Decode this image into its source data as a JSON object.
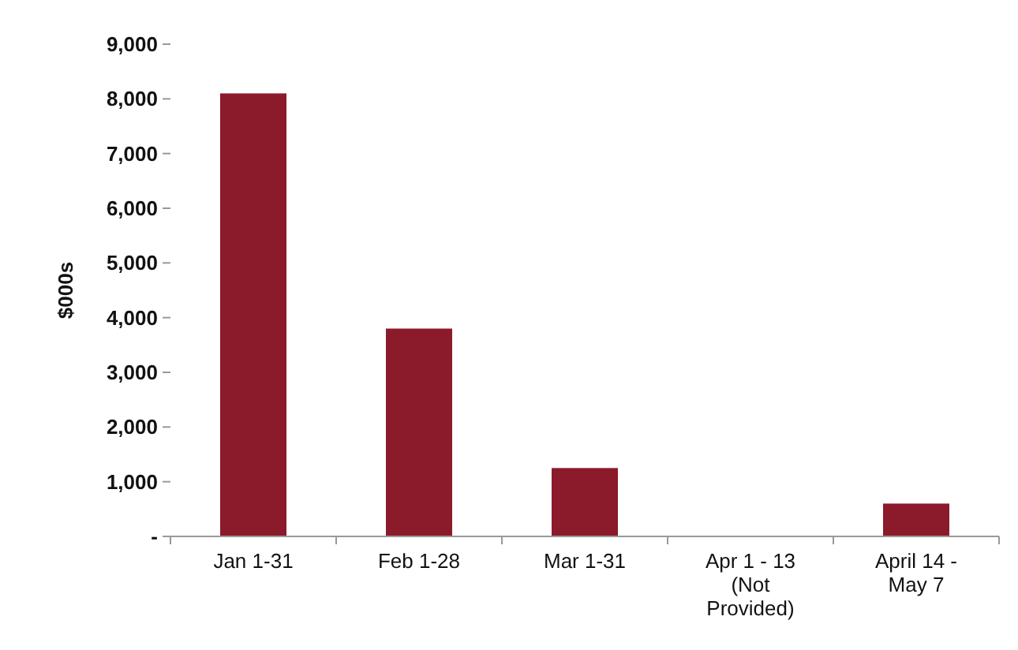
{
  "chart_data": {
    "type": "bar",
    "ylabel": "$000s",
    "categories": [
      "Jan 1-31",
      "Feb 1-28",
      "Mar 1-31",
      "Apr 1 - 13\n(Not\nProvided)",
      "April 14 -\nMay 7"
    ],
    "values": [
      8100,
      3800,
      1250,
      null,
      600
    ],
    "color": "#8b1a2b",
    "ylim": [
      0,
      9000
    ],
    "yticks": [
      {
        "value": 0,
        "label": "-"
      },
      {
        "value": 1000,
        "label": "1,000"
      },
      {
        "value": 2000,
        "label": "2,000"
      },
      {
        "value": 3000,
        "label": "3,000"
      },
      {
        "value": 4000,
        "label": "4,000"
      },
      {
        "value": 5000,
        "label": "5,000"
      },
      {
        "value": 6000,
        "label": "6,000"
      },
      {
        "value": 7000,
        "label": "7,000"
      },
      {
        "value": 8000,
        "label": "8,000"
      },
      {
        "value": 9000,
        "label": "9,000"
      }
    ]
  }
}
